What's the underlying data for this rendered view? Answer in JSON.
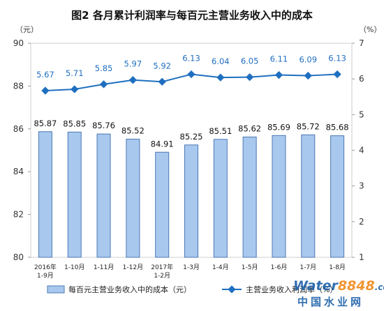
{
  "chart_data": {
    "title": "图2  各月累计利润率与每百元主营业务收入中的成本",
    "type": "bar+line",
    "categories": [
      [
        "2016年",
        "1-9月"
      ],
      [
        "1-10月"
      ],
      [
        "1-11月"
      ],
      [
        "1-12月"
      ],
      [
        "2017年",
        "1-2月"
      ],
      [
        "1-3月"
      ],
      [
        "1-4月"
      ],
      [
        "1-5月"
      ],
      [
        "1-6月"
      ],
      [
        "1-7月"
      ],
      [
        "1-8月"
      ]
    ],
    "left_axis": {
      "unit": "（元）",
      "ylim": [
        80,
        90
      ],
      "ticks": [
        "80",
        "82",
        "84",
        "86",
        "88",
        "90"
      ]
    },
    "right_axis": {
      "unit": "（%）",
      "ylim": [
        1,
        7
      ],
      "ticks": [
        "1",
        "2",
        "3",
        "4",
        "5",
        "6",
        "7"
      ]
    },
    "series": [
      {
        "name": "每百元主营业务收入中的成本（元）",
        "type": "bar",
        "axis": "left",
        "values": [
          85.87,
          85.85,
          85.76,
          85.52,
          84.91,
          85.25,
          85.51,
          85.62,
          85.69,
          85.72,
          85.68
        ],
        "labels": [
          "85.87",
          "85.85",
          "85.76",
          "85.52",
          "84.91",
          "85.25",
          "85.51",
          "85.62",
          "85.69",
          "85.72",
          "85.68"
        ]
      },
      {
        "name": "主营业务收入利润率（%）",
        "type": "line",
        "axis": "right",
        "values": [
          5.67,
          5.71,
          5.85,
          5.97,
          5.92,
          6.13,
          6.04,
          6.05,
          6.11,
          6.09,
          6.13
        ],
        "labels": [
          "5.67",
          "5.71",
          "5.85",
          "5.97",
          "5.92",
          "6.13",
          "6.04",
          "6.05",
          "6.11",
          "6.09",
          "6.13"
        ]
      }
    ],
    "grid": false,
    "legend": "bottom"
  },
  "colors": {
    "bar_fill": "#a9c8ee",
    "bar_stroke": "#4a78b5",
    "line": "#1f6fc0",
    "watermark_water": "#1a5fa8",
    "watermark_num": "#f08a1c"
  },
  "watermark": {
    "text1": "Water",
    "text2": "8848",
    "suffix": ".com",
    "text3": "中国水业网"
  }
}
